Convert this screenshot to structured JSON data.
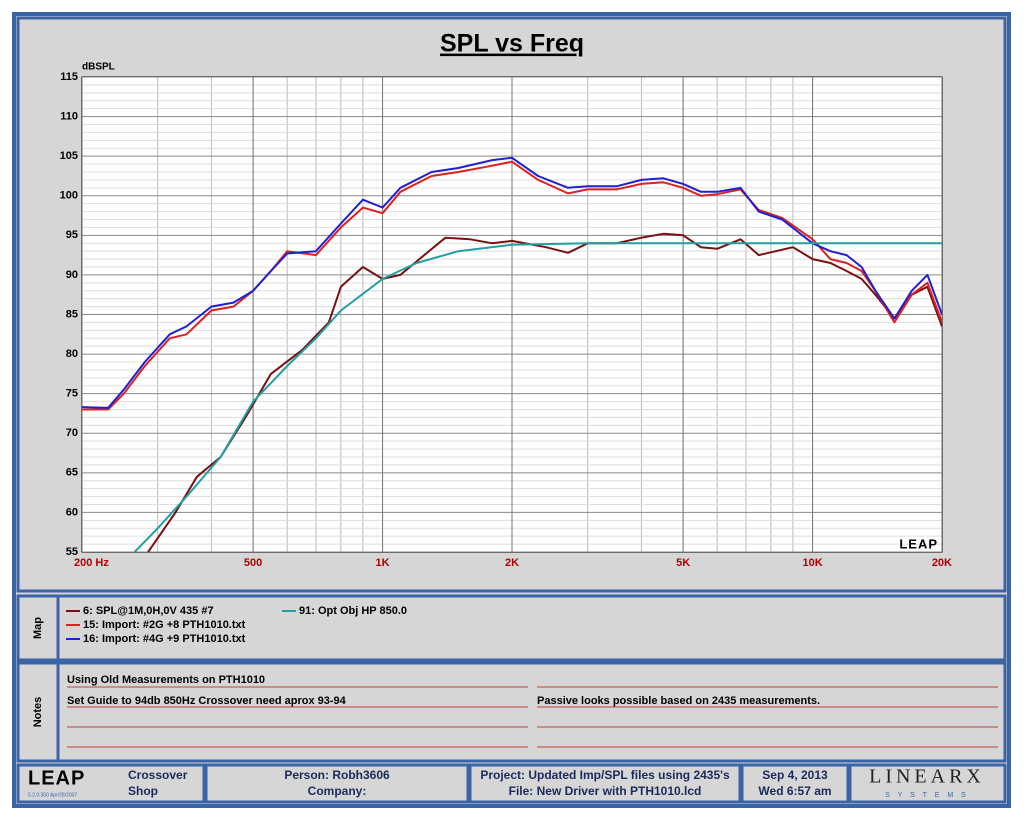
{
  "chart_data": {
    "type": "line",
    "title": "SPL vs Freq",
    "y_label": "dBSPL",
    "watermark": "LEAP",
    "x_scale": "log",
    "xlim": [
      200,
      20000
    ],
    "xticks": [
      {
        "value": 200,
        "label": "200  Hz"
      },
      500,
      {
        "value": 1000,
        "label": "1K"
      },
      {
        "value": 2000,
        "label": "2K"
      },
      {
        "value": 5000,
        "label": "5K"
      },
      {
        "value": 10000,
        "label": "10K"
      },
      {
        "value": 20000,
        "label": "20K"
      }
    ],
    "ylim": [
      55,
      115
    ],
    "yticks": [
      55,
      60,
      65,
      70,
      75,
      80,
      85,
      90,
      95,
      100,
      105,
      110,
      115
    ],
    "grid": true,
    "series": [
      {
        "name": "6: SPL@1M,0H,0V 435 #7",
        "color": "#7a1010",
        "x": [
          285,
          330,
          370,
          420,
          480,
          550,
          650,
          750,
          800,
          900,
          1000,
          1100,
          1250,
          1400,
          1600,
          1800,
          2000,
          2400,
          2700,
          3000,
          3500,
          4000,
          4500,
          5000,
          5500,
          6000,
          6800,
          7500,
          9000,
          10000,
          11000,
          12000,
          13000,
          14000,
          15500,
          17000,
          18500,
          20000
        ],
        "values": [
          55,
          60,
          64.5,
          67,
          72,
          77.5,
          80.5,
          84,
          88.5,
          91,
          89.5,
          90,
          92.5,
          94.7,
          94.5,
          94,
          94.3,
          93.5,
          92.8,
          94,
          94,
          94.7,
          95.2,
          95,
          93.5,
          93.3,
          94.5,
          92.5,
          93.5,
          92,
          91.5,
          90.5,
          89.5,
          87.5,
          84.5,
          87.5,
          88.5,
          83.5
        ]
      },
      {
        "name": "15: Import: #2G +8 PTH1010.txt",
        "color": "#e02020",
        "x": [
          200,
          230,
          250,
          280,
          320,
          350,
          400,
          450,
          500,
          550,
          600,
          700,
          800,
          900,
          1000,
          1100,
          1300,
          1500,
          1800,
          2000,
          2300,
          2700,
          3000,
          3500,
          4000,
          4500,
          5000,
          5500,
          6000,
          6800,
          7500,
          8500,
          10000,
          11000,
          12000,
          13000,
          14000,
          15500,
          17000,
          18500,
          20000
        ],
        "values": [
          73,
          73,
          75,
          78.5,
          82,
          82.5,
          85.5,
          86,
          88,
          90.5,
          93,
          92.5,
          96,
          98.5,
          97.8,
          100.5,
          102.5,
          103,
          103.8,
          104.3,
          102,
          100.3,
          100.8,
          100.8,
          101.5,
          101.7,
          101,
          100,
          100.2,
          100.8,
          98.2,
          97.2,
          94.5,
          92,
          91.5,
          90.5,
          88,
          84,
          87.5,
          89,
          84
        ]
      },
      {
        "name": "16: Import: #4G +9 PTH1010.txt",
        "color": "#2020d0",
        "x": [
          200,
          230,
          250,
          280,
          320,
          350,
          400,
          450,
          500,
          550,
          600,
          700,
          800,
          900,
          1000,
          1100,
          1300,
          1500,
          1800,
          2000,
          2300,
          2700,
          3000,
          3500,
          4000,
          4500,
          5000,
          5500,
          6000,
          6800,
          7500,
          8500,
          10000,
          11000,
          12000,
          13000,
          14000,
          15500,
          17000,
          18500,
          20000
        ],
        "values": [
          73.3,
          73.2,
          75.5,
          79,
          82.5,
          83.5,
          86,
          86.5,
          88,
          90.5,
          92.7,
          93,
          96.5,
          99.5,
          98.5,
          101,
          103,
          103.5,
          104.5,
          104.8,
          102.5,
          101,
          101.2,
          101.2,
          102,
          102.2,
          101.5,
          100.5,
          100.5,
          101,
          98,
          97,
          94,
          93,
          92.5,
          91,
          88,
          84.5,
          88,
          90,
          85
        ]
      },
      {
        "name": "91: Opt Obj HP  850.0",
        "color": "#20a0a0",
        "x": [
          265,
          300,
          350,
          420,
          500,
          600,
          700,
          800,
          1000,
          1200,
          1500,
          2000,
          3000,
          20000
        ],
        "values": [
          55,
          58,
          62,
          67,
          74,
          78.5,
          82,
          85.5,
          89.5,
          91.5,
          93,
          93.8,
          94,
          94
        ]
      }
    ]
  },
  "map_label": "Map",
  "notes_label": "Notes",
  "notes": {
    "left": [
      "Using Old Measurements on PTH1010",
      "Set Guide to 94db 850Hz Crossover need  aprox 93-94"
    ],
    "right": [
      "Passive looks possible based on 2435 measurements."
    ]
  },
  "footer": {
    "logo": "LEAP",
    "version": "5.2.0.350   Apr/28/2007",
    "product": [
      "Crossover",
      "Shop"
    ],
    "person": "Person: Robh3606",
    "company": "Company:",
    "project": "Project: Updated Imp/SPL files using 2435's",
    "file": "File: New Driver with PTH1010.lcd",
    "date": "Sep  4, 2013",
    "time": "Wed  6:57 am",
    "brand": "LINEARX",
    "brand_sub": "S Y S T E M S"
  }
}
